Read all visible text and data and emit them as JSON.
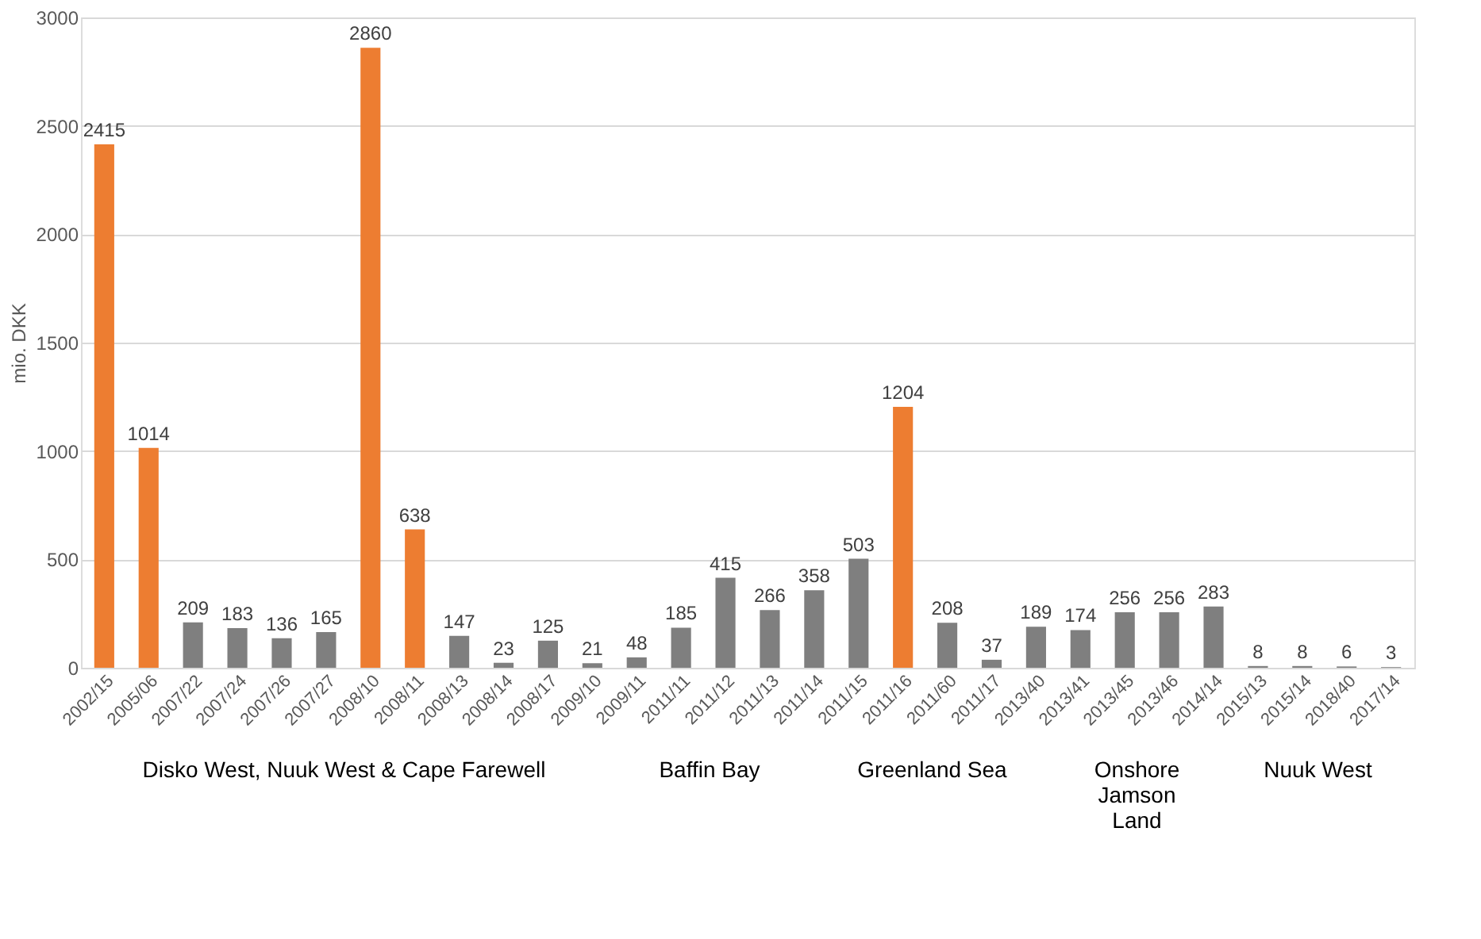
{
  "chart_data": {
    "type": "bar",
    "ylabel": "mio. DKK",
    "categories": [
      "2002/15",
      "2005/06",
      "2007/22",
      "2007/24",
      "2007/26",
      "2007/27",
      "2008/10",
      "2008/11",
      "2008/13",
      "2008/14",
      "2008/17",
      "2009/10",
      "2009/11",
      "2011/11",
      "2011/12",
      "2011/13",
      "2011/14",
      "2011/15",
      "2011/16",
      "2011/60",
      "2011/17",
      "2013/40",
      "2013/41",
      "2013/45",
      "2013/46",
      "2014/14",
      "2015/13",
      "2015/14",
      "2018/40",
      "2017/14"
    ],
    "values": [
      2415,
      1014,
      209,
      183,
      136,
      165,
      2860,
      638,
      147,
      23,
      125,
      21,
      48,
      185,
      415,
      266,
      358,
      503,
      1204,
      208,
      37,
      189,
      174,
      256,
      256,
      283,
      8,
      8,
      6,
      3
    ],
    "colors": [
      "#ed7d31",
      "#ed7d31",
      "#7f7f7f",
      "#7f7f7f",
      "#7f7f7f",
      "#7f7f7f",
      "#ed7d31",
      "#ed7d31",
      "#7f7f7f",
      "#7f7f7f",
      "#7f7f7f",
      "#7f7f7f",
      "#7f7f7f",
      "#7f7f7f",
      "#7f7f7f",
      "#7f7f7f",
      "#7f7f7f",
      "#7f7f7f",
      "#ed7d31",
      "#7f7f7f",
      "#7f7f7f",
      "#7f7f7f",
      "#7f7f7f",
      "#7f7f7f",
      "#7f7f7f",
      "#7f7f7f",
      "#7f7f7f",
      "#7f7f7f",
      "#7f7f7f",
      "#7f7f7f"
    ],
    "ylim": [
      0,
      3000
    ],
    "yticks": [
      0,
      500,
      1000,
      1500,
      2000,
      2500,
      3000
    ],
    "grid": "y",
    "data_labels": true,
    "annotations": [
      "Disko West, Nuuk West & Cape Farewell",
      "Baffin Bay",
      "Greenland Sea",
      "Onshore Jamson Land",
      "Nuuk West"
    ]
  }
}
